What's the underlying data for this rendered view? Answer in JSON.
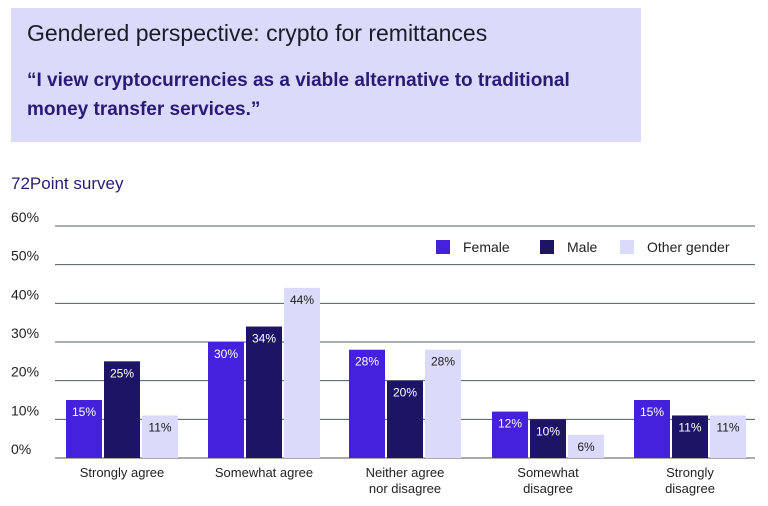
{
  "header": {
    "title": "Gendered perspective: crypto for remittances",
    "quote": "“I view cryptocurrencies as a viable alternative to traditional money transfer services.”"
  },
  "subtitle": "72Point survey",
  "colors": {
    "female": "#4422dd",
    "male": "#1e1466",
    "other": "#dcdafa",
    "header_bg": "#dcdafa"
  },
  "chart_data": {
    "type": "bar",
    "title": "Gendered perspective: crypto for remittances",
    "subtitle": "72Point survey",
    "xlabel": "",
    "ylabel": "",
    "ylim": [
      0,
      60
    ],
    "yticks": [
      "0%",
      "10%",
      "20%",
      "30%",
      "40%",
      "50%",
      "60%"
    ],
    "categories": [
      [
        "Strongly agree"
      ],
      [
        "Somewhat agree"
      ],
      [
        "Neither agree",
        "nor disagree"
      ],
      [
        "Somewhat",
        "disagree"
      ],
      [
        "Strongly",
        "disagree"
      ]
    ],
    "series": [
      {
        "name": "Female",
        "color": "#4422dd",
        "label_color": "#ffffff",
        "values": [
          15,
          30,
          28,
          12,
          15
        ],
        "labels": [
          "15%",
          "30%",
          "28%",
          "12%",
          "15%"
        ]
      },
      {
        "name": "Male",
        "color": "#1e1466",
        "label_color": "#ffffff",
        "values": [
          25,
          34,
          20,
          10,
          11
        ],
        "labels": [
          "25%",
          "34%",
          "20%",
          "10%",
          "11%"
        ]
      },
      {
        "name": "Other gender",
        "color": "#dcdafa",
        "label_color": "#1a1a1a",
        "values": [
          11,
          44,
          28,
          6,
          11
        ],
        "labels": [
          "11%",
          "44%",
          "28%",
          "6%",
          "11%"
        ]
      }
    ],
    "legend": {
      "position": "top-right"
    },
    "grid": true
  }
}
